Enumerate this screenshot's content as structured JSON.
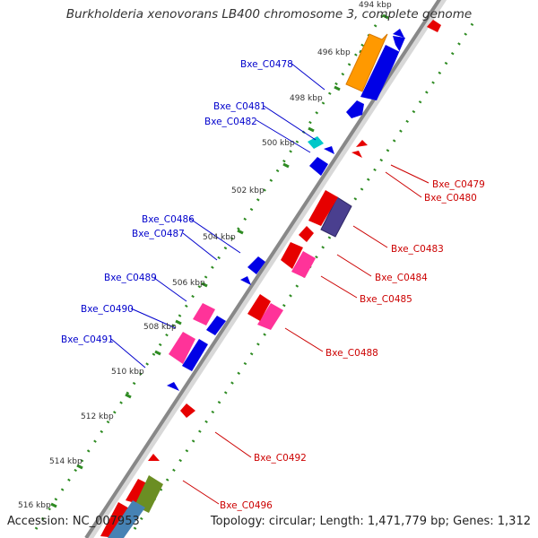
{
  "title": "Burkholderia xenovorans LB400 chromosome 3, complete genome",
  "accession": "Accession: NC_007953",
  "topology": "Topology: circular; Length: 1,471,779 bp; Genes: 1,312",
  "kbp_labels": [
    "494 kbp",
    "496 kbp",
    "498 kbp",
    "500 kbp",
    "502 kbp",
    "504 kbp",
    "506 kbp",
    "508 kbp",
    "510 kbp",
    "512 kbp",
    "514 kbp",
    "516 kbp"
  ],
  "gene_labels_left": [
    "Bxe_C0478",
    "Bxe_C0481",
    "Bxe_C0482",
    "Bxe_C0486",
    "Bxe_C0487",
    "Bxe_C0489",
    "Bxe_C0490",
    "Bxe_C0491"
  ],
  "gene_labels_right": [
    "Bxe_C0479",
    "Bxe_C0480",
    "Bxe_C0483",
    "Bxe_C0484",
    "Bxe_C0485",
    "Bxe_C0488",
    "Bxe_C0492",
    "Bxe_C0496"
  ],
  "colors": {
    "backbone": "#8c8c8c",
    "forward_strand": "#0000e6",
    "reverse_strand": "#e60000",
    "dotted_ring": "#2e8b22",
    "orange_feature": "#ff9900",
    "pink_feature": "#ff3399",
    "purple_feature": "#4a3f8f",
    "cyan_feature": "#00c8c8",
    "olive_feature": "#6b8e23",
    "steelblue_feature": "#4682b4",
    "left_label": "#0000cc",
    "right_label": "#cc0000"
  }
}
